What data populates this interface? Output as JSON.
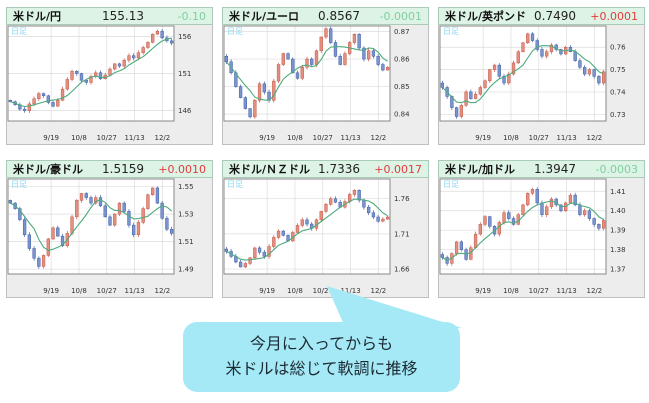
{
  "colors": {
    "panel_header_bg": "#ddf3e6",
    "panel_header_border": "#a9cbb8",
    "panel_body_bg": "#ededed",
    "panel_body_border": "#bfbfbf",
    "plot_border": "#888888",
    "grid": "#dcdcdc",
    "axis_text": "#333333",
    "timeframe_text": "#85d6f2",
    "candle_up": "#c8574a",
    "candle_up_fill": "#e2907f",
    "candle_down": "#3f5fa8",
    "candle_down_fill": "#7b95cc",
    "ma_line": "#4cab7c",
    "change_up": "#e03c3c",
    "change_down": "#7fcf9f",
    "bubble_bg": "#a5e9f7",
    "bubble_text": "#1c2b33"
  },
  "bubble": {
    "line1": "今月に入ってからも",
    "line2": "米ドルは総じて軟調に推移"
  },
  "chart_data": [
    {
      "type": "candlestick",
      "pair": "米ドル/円",
      "price": "155.13",
      "change": "-0.10",
      "timeframe_label": "日足",
      "x_ticks": [
        "9/19",
        "10/8",
        "10/27",
        "11/13",
        "12/2"
      ],
      "y_ticks": [
        "156",
        "151",
        "146"
      ],
      "ylim": [
        144.6,
        157.4
      ],
      "legend": "green line = moving average",
      "closes": [
        147.2,
        146.8,
        146.2,
        146.0,
        146.9,
        147.6,
        148.3,
        148.0,
        147.1,
        146.6,
        147.4,
        148.9,
        150.2,
        151.3,
        151.0,
        150.1,
        149.8,
        150.6,
        151.1,
        150.3,
        150.8,
        151.6,
        152.3,
        152.0,
        152.8,
        153.4,
        153.1,
        153.8,
        154.5,
        155.2,
        156.3,
        156.7,
        155.8,
        155.4,
        155.1
      ]
    },
    {
      "type": "candlestick",
      "pair": "米ドル/ユーロ",
      "price": "0.8567",
      "change": "-0.0001",
      "timeframe_label": "日足",
      "x_ticks": [
        "9/19",
        "10/8",
        "10/27",
        "11/13",
        "12/2"
      ],
      "y_ticks": [
        "0.87",
        "0.86",
        "0.85",
        "0.84"
      ],
      "ylim": [
        0.8375,
        0.872
      ],
      "closes": [
        0.859,
        0.855,
        0.85,
        0.846,
        0.842,
        0.839,
        0.845,
        0.851,
        0.848,
        0.845,
        0.852,
        0.858,
        0.862,
        0.86,
        0.855,
        0.853,
        0.857,
        0.86,
        0.858,
        0.863,
        0.868,
        0.871,
        0.866,
        0.861,
        0.858,
        0.862,
        0.866,
        0.869,
        0.864,
        0.86,
        0.863,
        0.861,
        0.858,
        0.856,
        0.857
      ]
    },
    {
      "type": "candlestick",
      "pair": "米ドル/英ポンド",
      "price": "0.7490",
      "change": "+0.0001",
      "timeframe_label": "日足",
      "x_ticks": [
        "9/19",
        "10/8",
        "10/27",
        "11/13",
        "12/2"
      ],
      "y_ticks": [
        "0.76",
        "0.75",
        "0.74",
        "0.73"
      ],
      "ylim": [
        0.727,
        0.7695
      ],
      "closes": [
        0.742,
        0.738,
        0.733,
        0.729,
        0.734,
        0.74,
        0.737,
        0.739,
        0.742,
        0.745,
        0.75,
        0.752,
        0.747,
        0.744,
        0.748,
        0.753,
        0.758,
        0.762,
        0.766,
        0.763,
        0.759,
        0.756,
        0.758,
        0.761,
        0.759,
        0.757,
        0.76,
        0.758,
        0.754,
        0.751,
        0.748,
        0.75,
        0.747,
        0.744,
        0.749
      ]
    },
    {
      "type": "candlestick",
      "pair": "米ドル/豪ドル",
      "price": "1.5159",
      "change": "+0.0010",
      "timeframe_label": "日足",
      "x_ticks": [
        "9/19",
        "10/8",
        "10/27",
        "11/13",
        "12/2"
      ],
      "y_ticks": [
        "1.55",
        "1.53",
        "1.51",
        "1.49"
      ],
      "ylim": [
        1.4865,
        1.5555
      ],
      "closes": [
        1.538,
        1.534,
        1.526,
        1.515,
        1.505,
        1.498,
        1.492,
        1.5,
        1.512,
        1.52,
        1.514,
        1.507,
        1.516,
        1.528,
        1.54,
        1.545,
        1.542,
        1.538,
        1.542,
        1.536,
        1.528,
        1.522,
        1.53,
        1.538,
        1.532,
        1.522,
        1.515,
        1.524,
        1.534,
        1.544,
        1.549,
        1.538,
        1.527,
        1.519,
        1.516
      ]
    },
    {
      "type": "candlestick",
      "pair": "米ドル/ＮＺドル",
      "price": "1.7336",
      "change": "+0.0017",
      "timeframe_label": "日足",
      "x_ticks": [
        "9/19",
        "10/8",
        "10/27",
        "11/13",
        "12/2"
      ],
      "y_ticks": [
        "1.76",
        "1.71",
        "1.66"
      ],
      "ylim": [
        1.653,
        1.788
      ],
      "closes": [
        1.685,
        1.678,
        1.67,
        1.663,
        1.668,
        1.676,
        1.69,
        1.684,
        1.678,
        1.692,
        1.705,
        1.714,
        1.708,
        1.7,
        1.712,
        1.722,
        1.73,
        1.724,
        1.718,
        1.73,
        1.742,
        1.752,
        1.76,
        1.755,
        1.748,
        1.756,
        1.766,
        1.772,
        1.758,
        1.748,
        1.74,
        1.734,
        1.728,
        1.731,
        1.734
      ]
    },
    {
      "type": "candlestick",
      "pair": "米ドル/加ドル",
      "price": "1.3947",
      "change": "-0.0003",
      "timeframe_label": "日足",
      "x_ticks": [
        "9/19",
        "10/8",
        "10/27",
        "11/13",
        "12/2"
      ],
      "y_ticks": [
        "1.41",
        "1.40",
        "1.39",
        "1.38",
        "1.37"
      ],
      "ylim": [
        1.3675,
        1.4163
      ],
      "closes": [
        1.376,
        1.373,
        1.378,
        1.384,
        1.38,
        1.375,
        1.381,
        1.388,
        1.393,
        1.397,
        1.392,
        1.388,
        1.394,
        1.399,
        1.396,
        1.393,
        1.398,
        1.403,
        1.409,
        1.411,
        1.404,
        1.398,
        1.402,
        1.406,
        1.403,
        1.4,
        1.404,
        1.408,
        1.403,
        1.398,
        1.4,
        1.396,
        1.393,
        1.391,
        1.395
      ]
    }
  ]
}
